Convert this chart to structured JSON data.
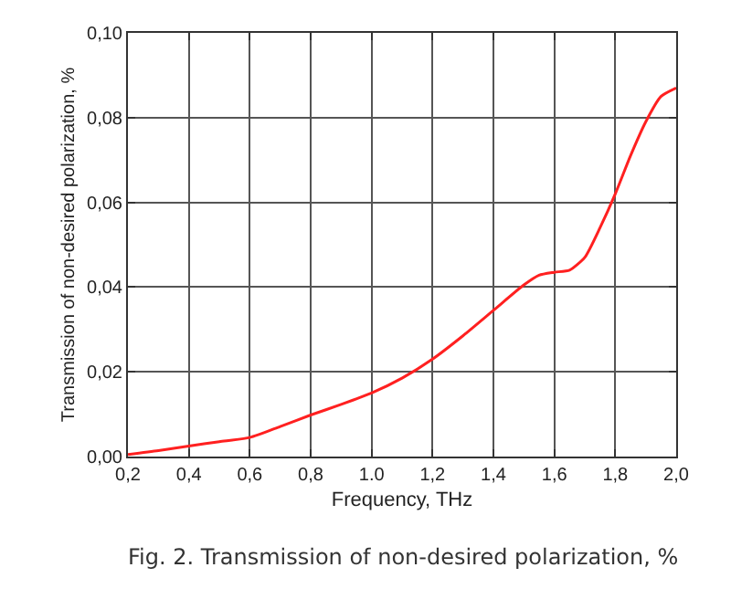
{
  "chart_data": {
    "type": "line",
    "xlabel": "Frequency, THz",
    "ylabel": "Transmission of non-desired polarization, %",
    "annotations": [
      "Fig. 2. Transmission of non-desired polarization, %"
    ],
    "x": [
      0.2,
      0.3,
      0.4,
      0.5,
      0.6,
      0.7,
      0.8,
      0.9,
      1.0,
      1.1,
      1.2,
      1.3,
      1.4,
      1.5,
      1.55,
      1.6,
      1.65,
      1.7,
      1.75,
      1.8,
      1.85,
      1.9,
      1.95,
      2.0
    ],
    "series": [
      {
        "color": "#ff2020",
        "values": [
          0.0005,
          0.0014,
          0.0025,
          0.0035,
          0.0045,
          0.0071,
          0.0098,
          0.0123,
          0.015,
          0.0185,
          0.023,
          0.0285,
          0.0345,
          0.0405,
          0.0428,
          0.0435,
          0.044,
          0.047,
          0.054,
          0.062,
          0.071,
          0.079,
          0.085,
          0.087
        ]
      }
    ],
    "xlim": [
      0.2,
      2.0
    ],
    "ylim": [
      0,
      0.1
    ],
    "xticks": [
      {
        "value": 0.2,
        "label": "0,2"
      },
      {
        "value": 0.4,
        "label": "0,4"
      },
      {
        "value": 0.6,
        "label": "0,6"
      },
      {
        "value": 0.8,
        "label": "0,8"
      },
      {
        "value": 1.0,
        "label": "1.0"
      },
      {
        "value": 1.2,
        "label": "1,2"
      },
      {
        "value": 1.4,
        "label": "1,4"
      },
      {
        "value": 1.6,
        "label": "1,6"
      },
      {
        "value": 1.8,
        "label": "1,8"
      },
      {
        "value": 2.0,
        "label": "2,0"
      }
    ],
    "yticks": [
      {
        "value": 0,
        "label": "0,00"
      },
      {
        "value": 0.02,
        "label": "0,02"
      },
      {
        "value": 0.04,
        "label": "0,04"
      },
      {
        "value": 0.06,
        "label": "0,06"
      },
      {
        "value": 0.08,
        "label": "0,08"
      },
      {
        "value": 0.1,
        "label": "0,10"
      }
    ],
    "grid": true,
    "line_style": "solid",
    "marker": "none"
  }
}
